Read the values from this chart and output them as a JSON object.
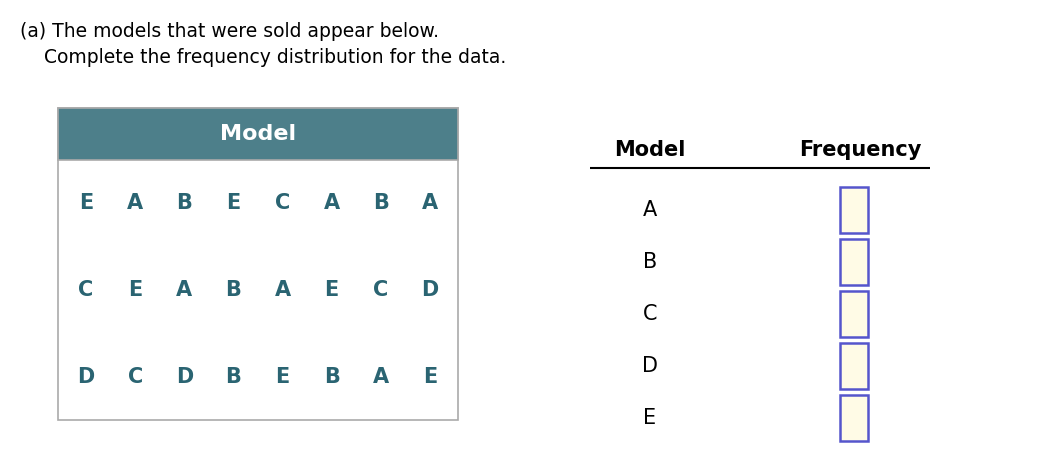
{
  "title_line1": "(a) The models that were sold appear below.",
  "title_line2": "    Complete the frequency distribution for the data.",
  "left_table_header": "Model",
  "left_table_header_bg": "#4d7f8a",
  "left_table_header_text_color": "#ffffff",
  "left_table_row_letters": [
    [
      "E",
      "A",
      "B",
      "E",
      "C",
      "A",
      "B",
      "A"
    ],
    [
      "C",
      "E",
      "A",
      "B",
      "A",
      "E",
      "C",
      "D"
    ],
    [
      "D",
      "C",
      "D",
      "B",
      "E",
      "B",
      "A",
      "E"
    ]
  ],
  "left_table_letter_color": "#2a6472",
  "right_table_header_model": "Model",
  "right_table_header_freq": "Frequency",
  "right_table_models": [
    "A",
    "B",
    "C",
    "D",
    "E"
  ],
  "input_box_fill": "#fffbe6",
  "input_box_border": "#5555cc",
  "background_color": "#ffffff",
  "text_color": "#000000",
  "title_font_size": 13.5,
  "table_font_size": 14,
  "header_font_size": 14
}
